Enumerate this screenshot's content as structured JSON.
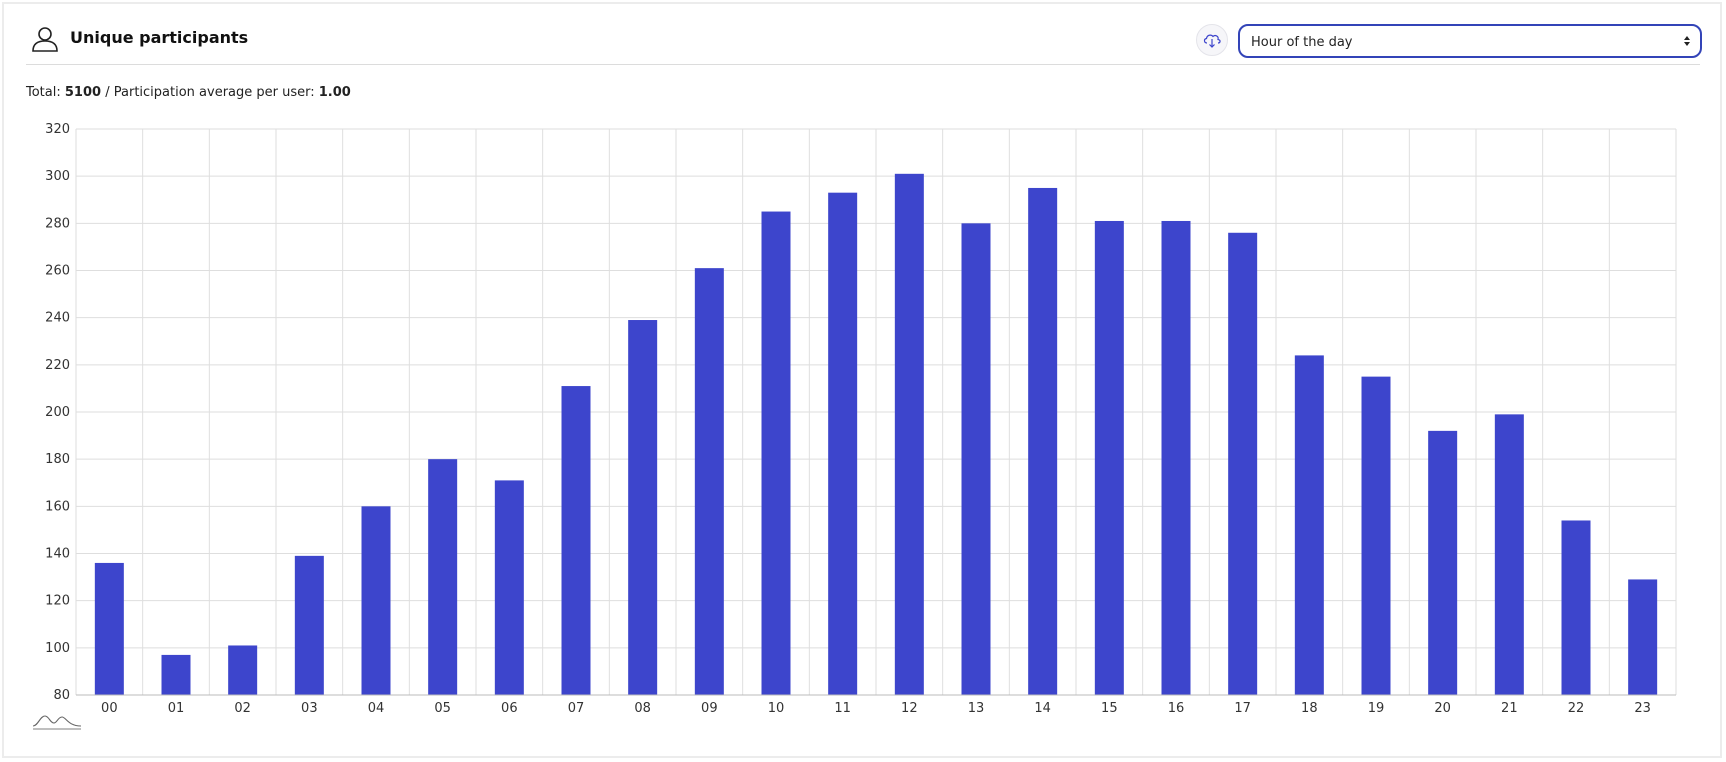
{
  "header": {
    "title": "Unique participants",
    "icon": "user-icon",
    "download_icon": "cloud-download-icon",
    "period_select": {
      "value": "Hour of the day"
    }
  },
  "summary": {
    "total_label": "Total:",
    "total_value": "5100",
    "separator": "/",
    "average_label": "Participation average per user:",
    "average_value": "1.00"
  },
  "colors": {
    "accent": "#3d45cc",
    "select_border": "#3344b8",
    "grid": "#dedede"
  },
  "chart_data": {
    "type": "bar",
    "categories": [
      "00",
      "01",
      "02",
      "03",
      "04",
      "05",
      "06",
      "07",
      "08",
      "09",
      "10",
      "11",
      "12",
      "13",
      "14",
      "15",
      "16",
      "17",
      "18",
      "19",
      "20",
      "21",
      "22",
      "23"
    ],
    "values": [
      136,
      97,
      101,
      139,
      160,
      180,
      171,
      211,
      239,
      261,
      285,
      293,
      301,
      280,
      295,
      281,
      281,
      276,
      224,
      215,
      192,
      199,
      154,
      129
    ],
    "ylim": [
      80,
      320
    ],
    "yticks": [
      80,
      100,
      120,
      140,
      160,
      180,
      200,
      220,
      240,
      260,
      280,
      300,
      320
    ],
    "grid": true,
    "bar_color": "#3d45cc"
  },
  "footer": {
    "icon": "zoom-range-icon"
  }
}
